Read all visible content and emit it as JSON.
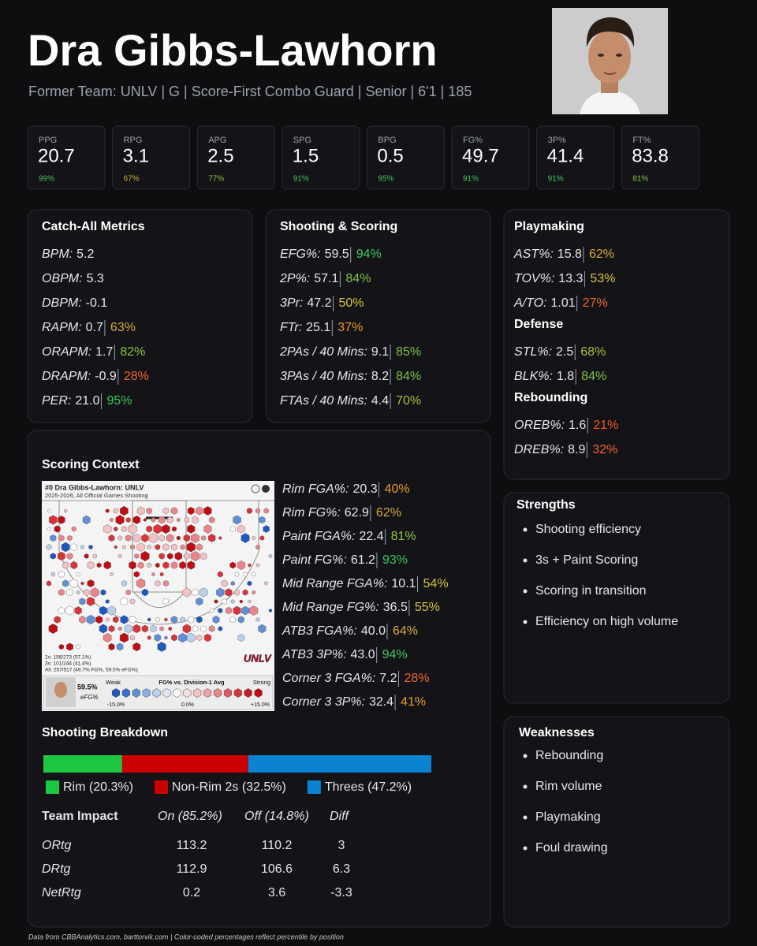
{
  "header": {
    "name": "Dra Gibbs-Lawhorn",
    "subtitle": "Former Team: UNLV | G | Score-First Combo Guard | Senior | 6'1 | 185"
  },
  "stats": [
    {
      "label": "PPG",
      "value": "20.7",
      "pct": "99%",
      "color": "#3ec45c"
    },
    {
      "label": "RPG",
      "value": "3.1",
      "pct": "67%",
      "color": "#c9b23a"
    },
    {
      "label": "APG",
      "value": "2.5",
      "pct": "77%",
      "color": "#8cc63f"
    },
    {
      "label": "SPG",
      "value": "1.5",
      "pct": "91%",
      "color": "#3ec45c"
    },
    {
      "label": "BPG",
      "value": "0.5",
      "pct": "95%",
      "color": "#3ec45c"
    },
    {
      "label": "FG%",
      "value": "49.7",
      "pct": "91%",
      "color": "#3ec45c"
    },
    {
      "label": "3P%",
      "value": "41.4",
      "pct": "91%",
      "color": "#3ec45c"
    },
    {
      "label": "FT%",
      "value": "83.8",
      "pct": "81%",
      "color": "#8cc63f"
    }
  ],
  "catch_all": {
    "title": "Catch-All Metrics",
    "rows": [
      {
        "label": "BPM:",
        "value": "5.2"
      },
      {
        "label": "OBPM:",
        "value": "5.3"
      },
      {
        "label": "DBPM:",
        "value": "-0.1"
      },
      {
        "label": "RAPM:",
        "value": "0.7",
        "pct": "63%",
        "color": "#d9a93a"
      },
      {
        "label": "ORAPM:",
        "value": "1.7",
        "pct": "82%",
        "color": "#8cc63f"
      },
      {
        "label": "DRAPM:",
        "value": "-0.9",
        "pct": "28%",
        "color": "#f0652e"
      },
      {
        "label": "PER:",
        "value": "21.0",
        "pct": "95%",
        "color": "#3ec45c"
      }
    ]
  },
  "shooting_scoring": {
    "title": "Shooting & Scoring",
    "rows": [
      {
        "label": "EFG%:",
        "value": "59.5",
        "pct": "94%",
        "color": "#3ec45c"
      },
      {
        "label": "2P%:",
        "value": "57.1",
        "pct": "84%",
        "color": "#7ec24a"
      },
      {
        "label": "3Pr:",
        "value": "47.2",
        "pct": "50%",
        "color": "#d4c43c"
      },
      {
        "label": "FTr:",
        "value": "25.1",
        "pct": "37%",
        "color": "#e89a2c"
      },
      {
        "label": "2PAs / 40 Mins:",
        "value": "9.1",
        "pct": "85%",
        "color": "#7ec24a"
      },
      {
        "label": "3PAs / 40 Mins:",
        "value": "8.2",
        "pct": "84%",
        "color": "#7ec24a"
      },
      {
        "label": "FTAs / 40 Mins:",
        "value": "4.4",
        "pct": "70%",
        "color": "#a5c23c"
      }
    ]
  },
  "playmaking": {
    "groups": [
      {
        "title": "Playmaking",
        "rows": [
          {
            "label": "AST%:",
            "value": "15.8",
            "pct": "62%",
            "color": "#d9a93a"
          },
          {
            "label": "TOV%:",
            "value": "13.3",
            "pct": "53%",
            "color": "#d4c43c"
          },
          {
            "label": "A/TO:",
            "value": "1.01",
            "pct": "27%",
            "color": "#f0652e"
          }
        ]
      },
      {
        "title": "Defense",
        "rows": [
          {
            "label": "STL%:",
            "value": "2.5",
            "pct": "68%",
            "color": "#a5c23c"
          },
          {
            "label": "BLK%:",
            "value": "1.8",
            "pct": "84%",
            "color": "#7ec24a"
          }
        ]
      },
      {
        "title": "Rebounding",
        "rows": [
          {
            "label": "OREB%:",
            "value": "1.6",
            "pct": "21%",
            "color": "#f0552e"
          },
          {
            "label": "DREB%:",
            "value": "8.9",
            "pct": "32%",
            "color": "#f0652e"
          }
        ]
      }
    ]
  },
  "scoring_context": {
    "title": "Scoring Context",
    "shot_chart": {
      "title": "#0 Dra Gibbs-Lawhorn: UNLV",
      "subtitle": "2025-2026, All Official Games Shooting",
      "lines": [
        "2s: 156/273 (57.1%)",
        "3s: 101/244 (41.4%)",
        "All: 257/517 (49.7% FG%, 59.5% eFG%)"
      ],
      "logo": "UNLV",
      "efg": "59.5%",
      "efg_label": "eFG%",
      "weak": "Weak",
      "scale_title": "FG% vs. Division-1 Avg",
      "strong": "Strong",
      "scale_ticks": [
        "-15.0%",
        "0.0%",
        "+15.0%"
      ]
    },
    "rows": [
      {
        "label": "Rim FGA%:",
        "value": "20.3",
        "pct": "40%",
        "color": "#e89a2c"
      },
      {
        "label": "Rim FG%:",
        "value": "62.9",
        "pct": "62%",
        "color": "#d9a93a"
      },
      {
        "label": "Paint FGA%:",
        "value": "22.4",
        "pct": "81%",
        "color": "#8cc63f"
      },
      {
        "label": "Paint FG%:",
        "value": "61.2",
        "pct": "93%",
        "color": "#3ec45c"
      },
      {
        "label": "Mid Range FGA%:",
        "value": "10.1",
        "pct": "54%",
        "color": "#d4c43c"
      },
      {
        "label": "Mid Range FG%:",
        "value": "36.5",
        "pct": "55%",
        "color": "#d4c43c"
      },
      {
        "label": "ATB3 FGA%:",
        "value": "40.0",
        "pct": "64%",
        "color": "#d9a93a"
      },
      {
        "label": "ATB3 3P%:",
        "value": "43.0",
        "pct": "94%",
        "color": "#3ec45c"
      },
      {
        "label": "Corner 3 FGA%:",
        "value": "7.2",
        "pct": "28%",
        "color": "#f0652e"
      },
      {
        "label": "Corner 3 3P%:",
        "value": "32.4",
        "pct": "41%",
        "color": "#e89a2c"
      }
    ]
  },
  "shooting_breakdown": {
    "title": "Shooting Breakdown",
    "segments": [
      {
        "value": 20.3,
        "label": "Rim (20.3%)",
        "color": "#1ec742"
      },
      {
        "value": 32.5,
        "label": "Non-Rim 2s (32.5%)",
        "color": "#cc0000"
      },
      {
        "value": 47.2,
        "label": "Threes (47.2%)",
        "color": "#0a84d0"
      }
    ]
  },
  "team_impact": {
    "header": [
      "Team Impact",
      "On (85.2%)",
      "Off (14.8%)",
      "Diff"
    ],
    "rows": [
      [
        "ORtg",
        "113.2",
        "110.2",
        "3"
      ],
      [
        "DRtg",
        "112.9",
        "106.6",
        "6.3"
      ],
      [
        "NetRtg",
        "0.2",
        "3.6",
        "-3.3"
      ]
    ]
  },
  "strengths": {
    "title": "Strengths",
    "items": [
      "Shooting efficiency",
      "3s + Paint Scoring",
      "Scoring in transition",
      "Efficiency on high volume"
    ]
  },
  "weaknesses": {
    "title": "Weaknesses",
    "items": [
      "Rebounding",
      "Rim volume",
      "Playmaking",
      "Foul drawing"
    ]
  },
  "footer": "Data from CBBAnalytics.com, barttorvik.com | Color-coded percentages reflect percentile by position"
}
